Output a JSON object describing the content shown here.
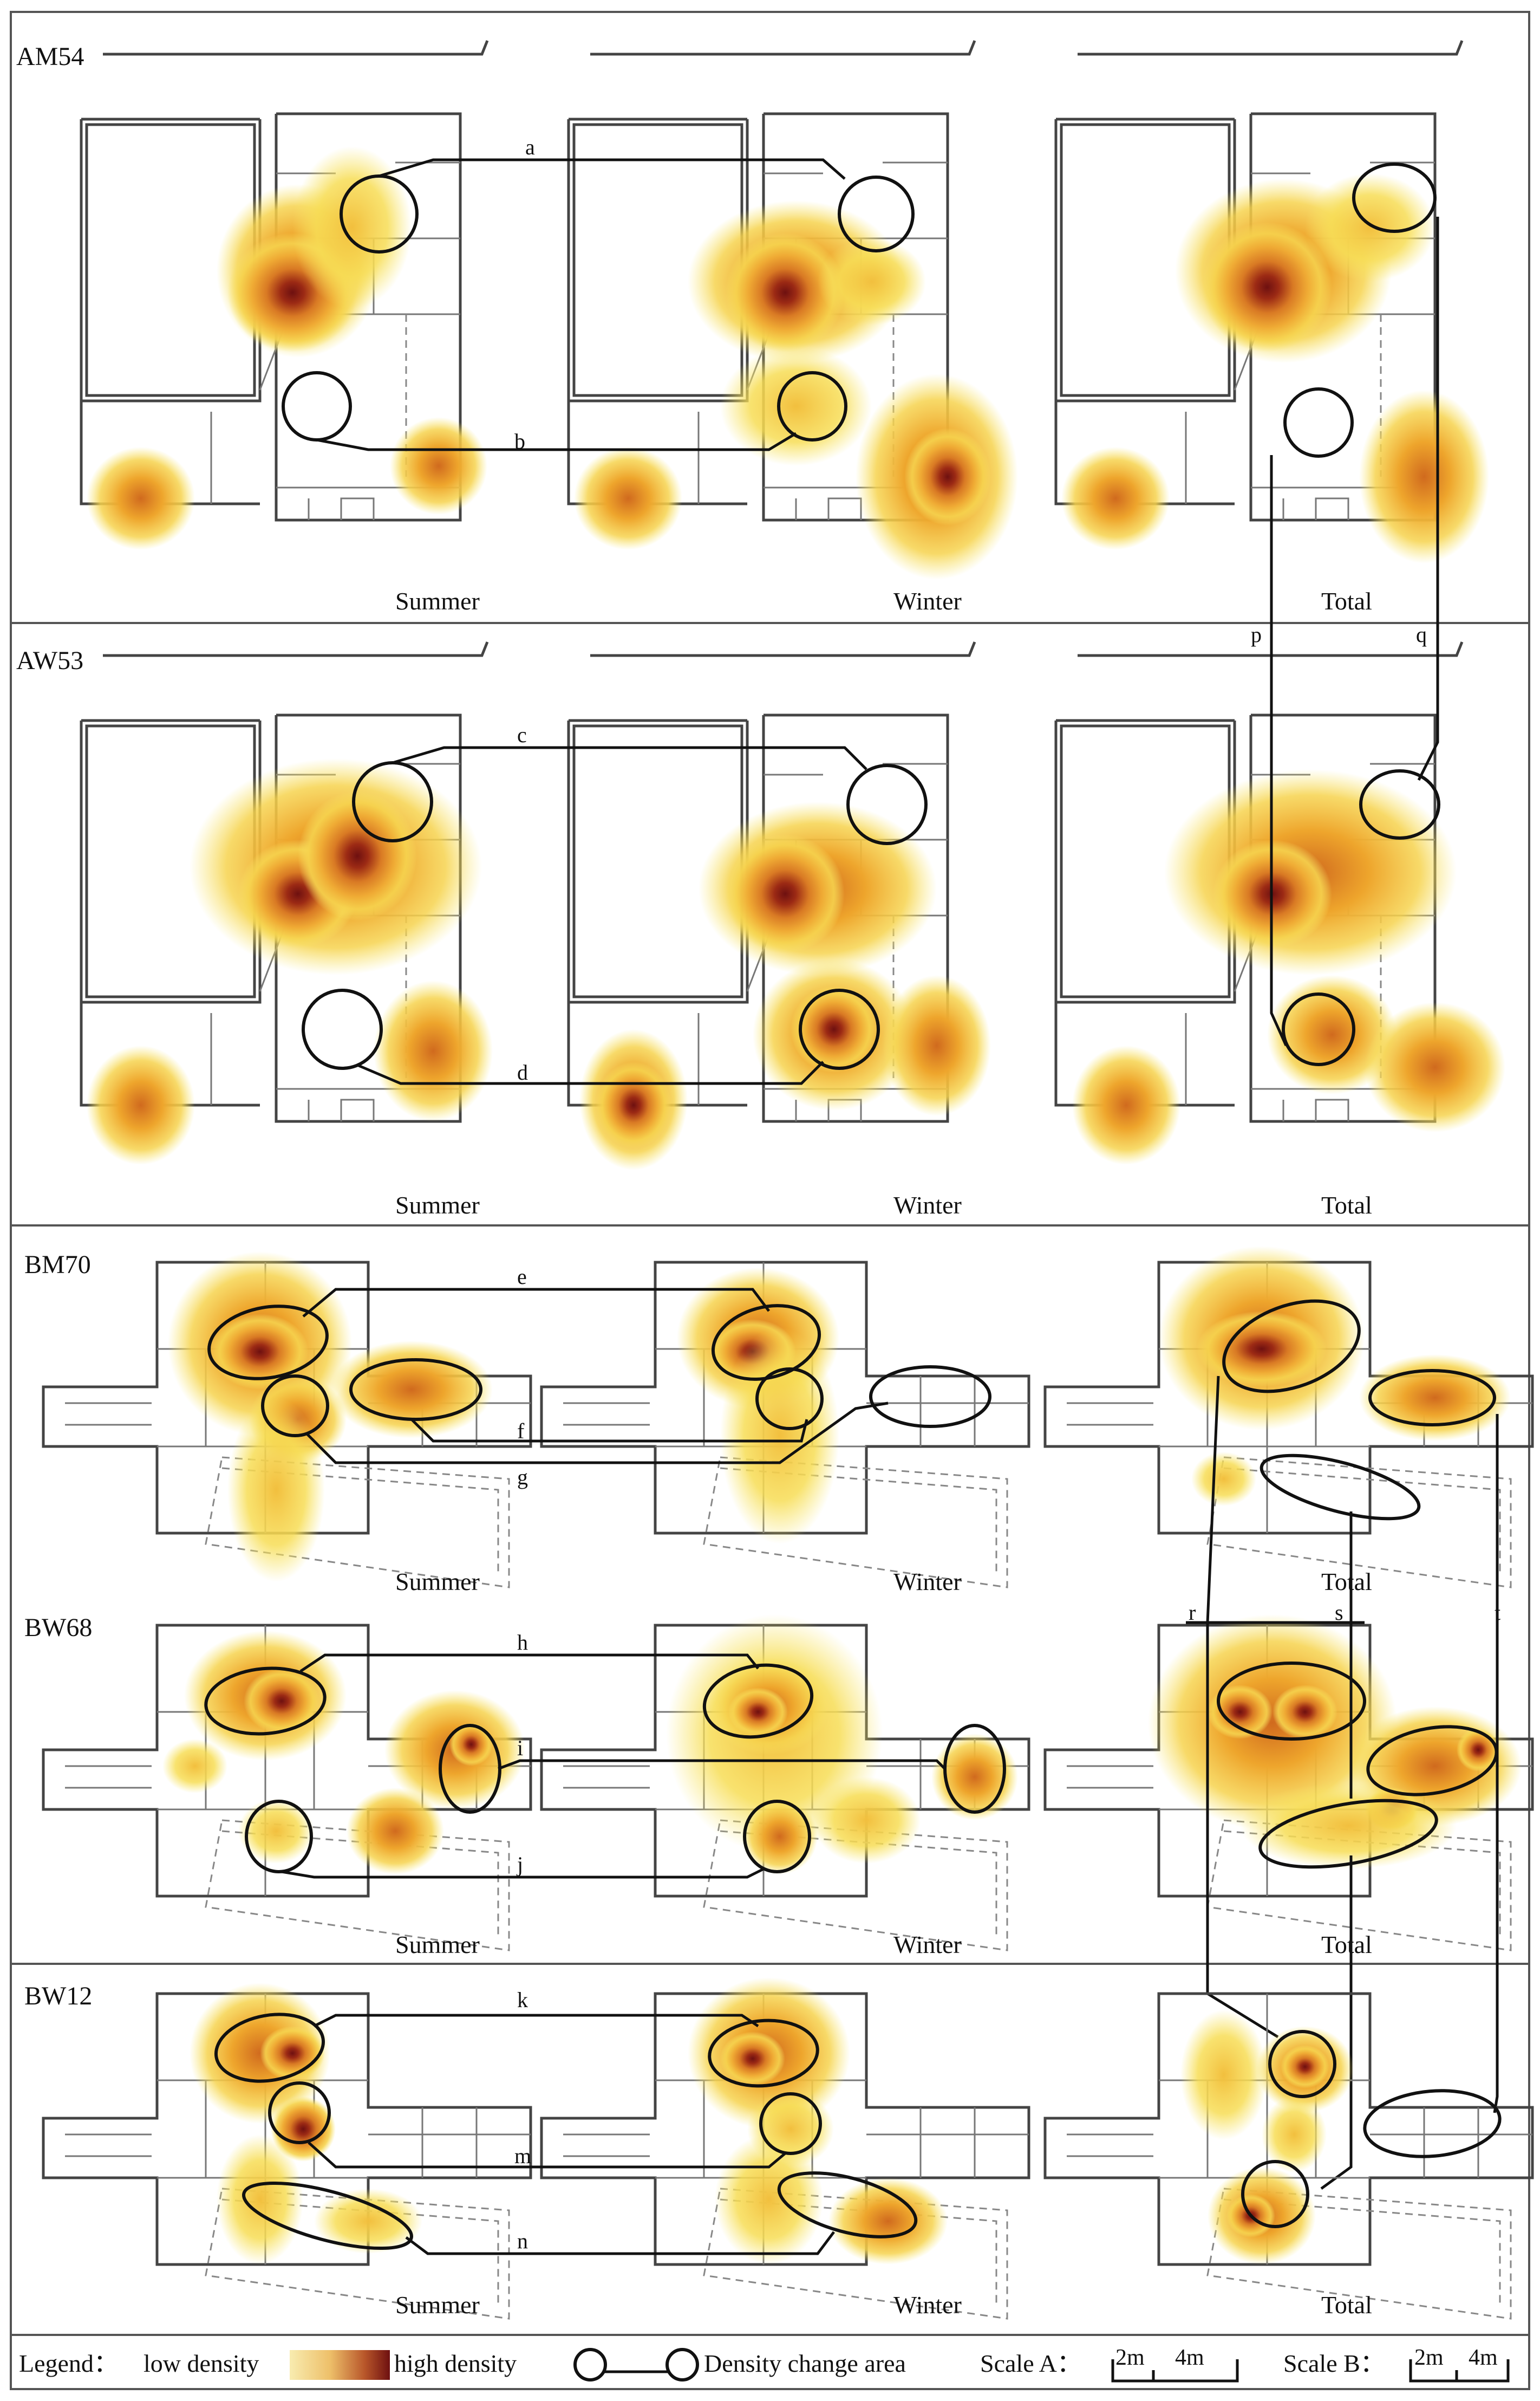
{
  "legend": {
    "title": "Legend：",
    "low": "low density",
    "high": "high density",
    "change": "Density change area",
    "scaleA": "Scale A：",
    "scaleB": "Scale B：",
    "s2m": "2m",
    "s4m": "4m"
  },
  "rows": [
    {
      "id": "AM54",
      "labels": [
        "a",
        "b"
      ]
    },
    {
      "id": "AW53",
      "labels": [
        "c",
        "d"
      ]
    },
    {
      "id": "BM70",
      "labels": [
        "e",
        "f",
        "g"
      ]
    },
    {
      "id": "BW68",
      "labels": [
        "h",
        "i",
        "j"
      ]
    },
    {
      "id": "BW12",
      "labels": [
        "k",
        "m",
        "n"
      ]
    }
  ],
  "seasons": {
    "summer": "Summer",
    "winter": "Winter",
    "total": "Total"
  },
  "cross_labels": {
    "p": "p",
    "q": "q",
    "r": "r",
    "s": "s",
    "t": "t"
  },
  "colors": {
    "low": "#f5e45a",
    "mid": "#eea52c",
    "high": "#7a1414",
    "line": "#111111"
  }
}
